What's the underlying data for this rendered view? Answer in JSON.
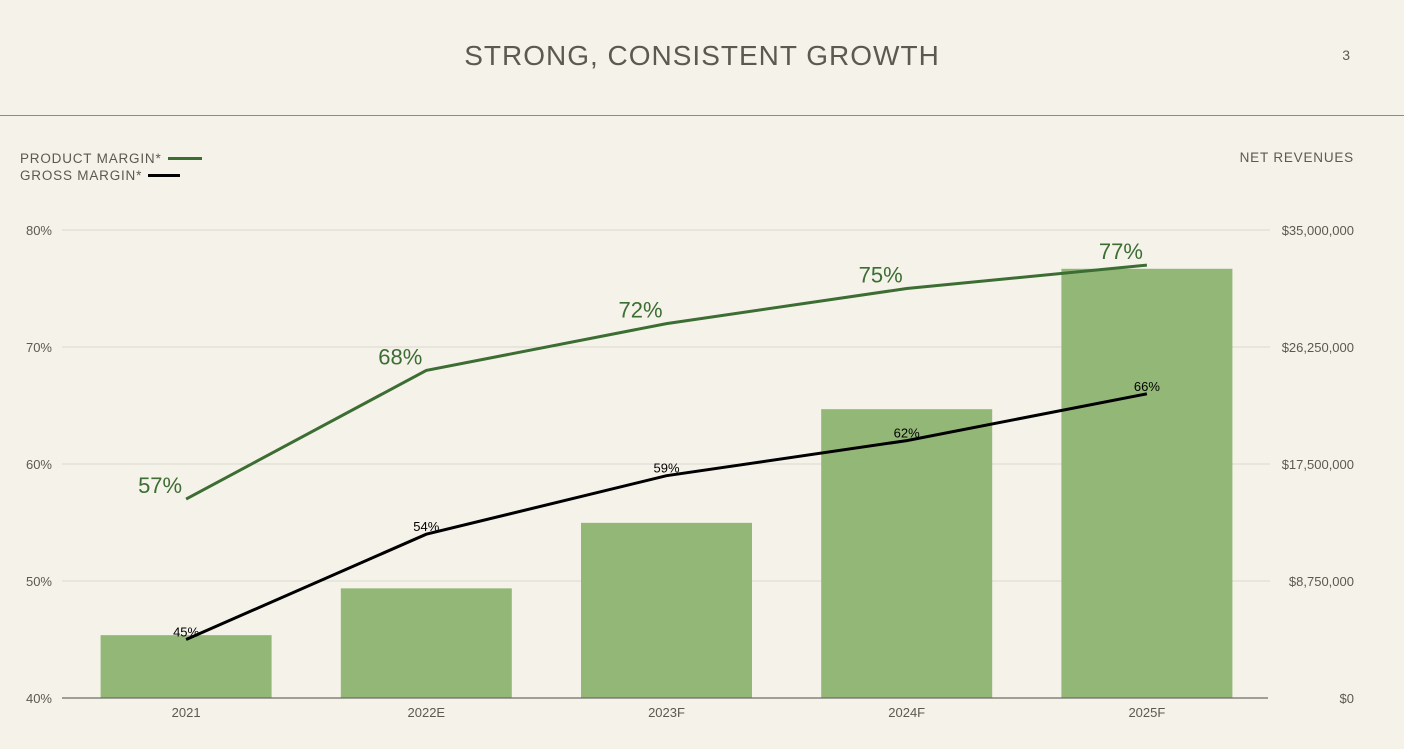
{
  "page": {
    "title": "STRONG, CONSISTENT GROWTH",
    "page_number": "3"
  },
  "legend": {
    "product_margin": "PRODUCT MARGIN*",
    "gross_margin": "GROSS MARGIN*"
  },
  "right_axis_title": "NET REVENUES",
  "colors": {
    "bar": "#93b777",
    "product_margin_line": "#3c6d32",
    "gross_margin_line": "#000000",
    "grid": "#dcd8cd",
    "text": "#5b5a4f"
  },
  "chart_data": {
    "type": "bar",
    "categories": [
      "2021",
      "2022E",
      "2023F",
      "2024F",
      "2025F"
    ],
    "bars": {
      "name": "NET REVENUES",
      "values": [
        4700000,
        8200000,
        13100000,
        21600000,
        32100000
      ]
    },
    "lines": [
      {
        "name": "PRODUCT MARGIN*",
        "values": [
          57,
          68,
          72,
          75,
          77
        ],
        "labels": [
          "57%",
          "68%",
          "72%",
          "75%",
          "77%"
        ]
      },
      {
        "name": "GROSS MARGIN*",
        "values": [
          45,
          54,
          59,
          62,
          66
        ],
        "labels": [
          "45%",
          "54%",
          "59%",
          "62%",
          "66%"
        ]
      }
    ],
    "left_axis": {
      "ylim": [
        40,
        80
      ],
      "ticks": [
        "80%",
        "70%",
        "60%",
        "50%",
        "40%"
      ]
    },
    "right_axis": {
      "ylim": [
        0,
        35000000
      ],
      "ticks": [
        "$35,000,000",
        "$26,250,000",
        "$17,500,000",
        "$8,750,000",
        "$0"
      ]
    },
    "grid": true,
    "legend_position": "top-left"
  }
}
